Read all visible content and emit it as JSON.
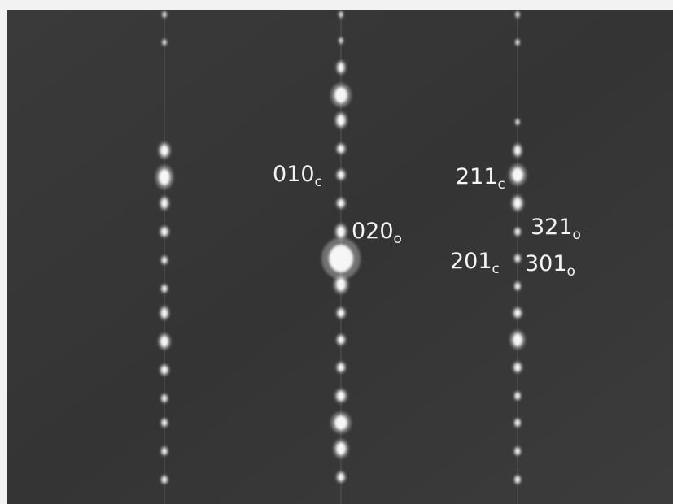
{
  "labels": [
    {
      "text": "010",
      "sub": "c"
    },
    {
      "text": "211",
      "sub": "c"
    },
    {
      "text": "020",
      "sub": "o"
    },
    {
      "text": "321",
      "sub": "o"
    },
    {
      "text": "201",
      "sub": "c"
    },
    {
      "text": "301",
      "sub": "o"
    }
  ]
}
